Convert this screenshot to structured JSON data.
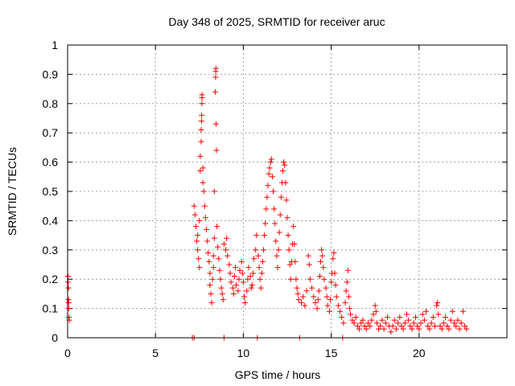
{
  "chart_data": {
    "type": "scatter",
    "title": "Day 348 of 2025, SRMTID for receiver aruc",
    "xlabel": "GPS time / hours",
    "ylabel": "SRMTID / TECUs",
    "xlim": [
      0,
      25
    ],
    "ylim": [
      0,
      1
    ],
    "x_ticks": [
      0,
      5,
      10,
      15,
      20
    ],
    "x_tick_labels": [
      "0",
      "5",
      "10",
      "15",
      "20"
    ],
    "y_ticks": [
      0,
      0.1,
      0.2,
      0.3,
      0.4,
      0.5,
      0.6,
      0.7,
      0.8,
      0.9,
      1
    ],
    "y_tick_labels": [
      "0",
      "0.1",
      "0.2",
      "0.3",
      "0.4",
      "0.5",
      "0.6",
      "0.7",
      "0.8",
      "0.9",
      "1"
    ],
    "grid": true,
    "marker": "+",
    "color": "#ff0000",
    "series": [
      {
        "name": "SRMTID",
        "points": [
          [
            0.02,
            0.21
          ],
          [
            0.03,
            0.19
          ],
          [
            0.05,
            0.17
          ],
          [
            0.05,
            0.13
          ],
          [
            0.06,
            0.12
          ],
          [
            0.07,
            0.1
          ],
          [
            0.08,
            0.07
          ],
          [
            0.1,
            0.06
          ],
          [
            7.1,
            0.0
          ],
          [
            7.2,
            0.0
          ],
          [
            7.2,
            0.45
          ],
          [
            7.25,
            0.42
          ],
          [
            7.3,
            0.38
          ],
          [
            7.35,
            0.33
          ],
          [
            7.4,
            0.35
          ],
          [
            7.4,
            0.3
          ],
          [
            7.45,
            0.27
          ],
          [
            7.5,
            0.24
          ],
          [
            7.5,
            0.4
          ],
          [
            7.55,
            0.57
          ],
          [
            7.55,
            0.62
          ],
          [
            7.6,
            0.67
          ],
          [
            7.6,
            0.71
          ],
          [
            7.62,
            0.74
          ],
          [
            7.63,
            0.76
          ],
          [
            7.64,
            0.8
          ],
          [
            7.65,
            0.82
          ],
          [
            7.65,
            0.83
          ],
          [
            7.7,
            0.58
          ],
          [
            7.7,
            0.53
          ],
          [
            7.75,
            0.5
          ],
          [
            7.8,
            0.45
          ],
          [
            7.85,
            0.41
          ],
          [
            7.9,
            0.37
          ],
          [
            7.95,
            0.33
          ],
          [
            8.0,
            0.29
          ],
          [
            8.05,
            0.26
          ],
          [
            8.1,
            0.22
          ],
          [
            8.1,
            0.18
          ],
          [
            8.15,
            0.15
          ],
          [
            8.2,
            0.12
          ],
          [
            8.25,
            0.2
          ],
          [
            8.3,
            0.24
          ],
          [
            8.3,
            0.28
          ],
          [
            8.35,
            0.34
          ],
          [
            8.35,
            0.5
          ],
          [
            8.4,
            0.84
          ],
          [
            8.42,
            0.89
          ],
          [
            8.43,
            0.91
          ],
          [
            8.44,
            0.92
          ],
          [
            8.45,
            0.73
          ],
          [
            8.47,
            0.64
          ],
          [
            8.5,
            0.38
          ],
          [
            8.55,
            0.31
          ],
          [
            8.6,
            0.27
          ],
          [
            8.65,
            0.23
          ],
          [
            8.7,
            0.2
          ],
          [
            8.75,
            0.17
          ],
          [
            8.8,
            0.15
          ],
          [
            8.85,
            0.13
          ],
          [
            8.9,
            0.0
          ],
          [
            8.9,
            0.32
          ],
          [
            9.0,
            0.3
          ],
          [
            9.05,
            0.34
          ],
          [
            9.1,
            0.28
          ],
          [
            9.2,
            0.25
          ],
          [
            9.25,
            0.22
          ],
          [
            9.3,
            0.19
          ],
          [
            9.4,
            0.17
          ],
          [
            9.45,
            0.15
          ],
          [
            9.5,
            0.21
          ],
          [
            9.55,
            0.24
          ],
          [
            9.6,
            0.18
          ],
          [
            9.7,
            0.16
          ],
          [
            9.75,
            0.2
          ],
          [
            9.8,
            0.23
          ],
          [
            9.9,
            0.26
          ],
          [
            9.95,
            0.22
          ],
          [
            10.0,
            0.19
          ],
          [
            10.05,
            0.14
          ],
          [
            10.1,
            0.12
          ],
          [
            10.2,
            0.16
          ],
          [
            10.25,
            0.2
          ],
          [
            10.3,
            0.24
          ],
          [
            10.4,
            0.21
          ],
          [
            10.45,
            0.17
          ],
          [
            10.5,
            0.18
          ],
          [
            10.55,
            0.22
          ],
          [
            10.6,
            0.27
          ],
          [
            10.7,
            0.3
          ],
          [
            10.75,
            0.35
          ],
          [
            10.8,
            0.0
          ],
          [
            10.85,
            0.28
          ],
          [
            10.9,
            0.24
          ],
          [
            10.95,
            0.2
          ],
          [
            11.0,
            0.17
          ],
          [
            11.05,
            0.22
          ],
          [
            11.1,
            0.26
          ],
          [
            11.15,
            0.3
          ],
          [
            11.2,
            0.35
          ],
          [
            11.25,
            0.39
          ],
          [
            11.3,
            0.44
          ],
          [
            11.35,
            0.48
          ],
          [
            11.4,
            0.52
          ],
          [
            11.45,
            0.56
          ],
          [
            11.5,
            0.58
          ],
          [
            11.55,
            0.6
          ],
          [
            11.6,
            0.61
          ],
          [
            11.65,
            0.55
          ],
          [
            11.7,
            0.5
          ],
          [
            11.75,
            0.44
          ],
          [
            11.8,
            0.39
          ],
          [
            11.85,
            0.33
          ],
          [
            11.9,
            0.28
          ],
          [
            11.95,
            0.24
          ],
          [
            12.0,
            0.3
          ],
          [
            12.05,
            0.36
          ],
          [
            12.1,
            0.42
          ],
          [
            12.15,
            0.48
          ],
          [
            12.2,
            0.53
          ],
          [
            12.25,
            0.57
          ],
          [
            12.3,
            0.6
          ],
          [
            12.35,
            0.59
          ],
          [
            12.4,
            0.53
          ],
          [
            12.45,
            0.47
          ],
          [
            12.5,
            0.41
          ],
          [
            12.55,
            0.35
          ],
          [
            12.6,
            0.3
          ],
          [
            12.65,
            0.25
          ],
          [
            12.7,
            0.2
          ],
          [
            12.75,
            0.26
          ],
          [
            12.8,
            0.32
          ],
          [
            12.85,
            0.38
          ],
          [
            12.9,
            0.32
          ],
          [
            12.95,
            0.26
          ],
          [
            13.0,
            0.2
          ],
          [
            13.05,
            0.17
          ],
          [
            13.1,
            0.15
          ],
          [
            13.15,
            0.13
          ],
          [
            13.2,
            0.0
          ],
          [
            13.3,
            0.12
          ],
          [
            13.4,
            0.14
          ],
          [
            13.5,
            0.11
          ],
          [
            13.6,
            0.16
          ],
          [
            13.7,
            0.28
          ],
          [
            13.75,
            0.25
          ],
          [
            13.8,
            0.2
          ],
          [
            13.9,
            0.17
          ],
          [
            14.0,
            0.14
          ],
          [
            14.1,
            0.12
          ],
          [
            14.2,
            0.1
          ],
          [
            14.25,
            0.13
          ],
          [
            14.3,
            0.16
          ],
          [
            14.35,
            0.21
          ],
          [
            14.4,
            0.26
          ],
          [
            14.45,
            0.3
          ],
          [
            14.5,
            0.28
          ],
          [
            14.55,
            0.24
          ],
          [
            14.6,
            0.2
          ],
          [
            14.7,
            0.17
          ],
          [
            14.75,
            0.14
          ],
          [
            14.8,
            0.11
          ],
          [
            14.9,
            0.09
          ],
          [
            14.95,
            0.13
          ],
          [
            15.0,
            0.19
          ],
          [
            15.05,
            0.22
          ],
          [
            15.1,
            0.27
          ],
          [
            15.15,
            0.29
          ],
          [
            15.2,
            0.22
          ],
          [
            15.25,
            0.18
          ],
          [
            15.3,
            0.14
          ],
          [
            15.4,
            0.11
          ],
          [
            15.5,
            0.09
          ],
          [
            15.6,
            0.07
          ],
          [
            15.65,
            0.0
          ],
          [
            15.7,
            0.05
          ],
          [
            15.8,
            0.12
          ],
          [
            15.85,
            0.16
          ],
          [
            15.9,
            0.19
          ],
          [
            15.95,
            0.23
          ],
          [
            16.0,
            0.14
          ],
          [
            16.05,
            0.1
          ],
          [
            16.1,
            0.08
          ],
          [
            16.2,
            0.06
          ],
          [
            16.3,
            0.05
          ],
          [
            16.4,
            0.07
          ],
          [
            16.5,
            0.04
          ],
          [
            16.6,
            0.03
          ],
          [
            16.7,
            0.05
          ],
          [
            16.8,
            0.06
          ],
          [
            16.9,
            0.04
          ],
          [
            17.0,
            0.03
          ],
          [
            17.1,
            0.05
          ],
          [
            17.2,
            0.04
          ],
          [
            17.3,
            0.06
          ],
          [
            17.4,
            0.08
          ],
          [
            17.5,
            0.11
          ],
          [
            17.55,
            0.09
          ],
          [
            17.6,
            0.05
          ],
          [
            17.7,
            0.03
          ],
          [
            17.8,
            0.04
          ],
          [
            17.9,
            0.06
          ],
          [
            18.0,
            0.03
          ],
          [
            18.1,
            0.05
          ],
          [
            18.2,
            0.07
          ],
          [
            18.3,
            0.04
          ],
          [
            18.4,
            0.02
          ],
          [
            18.5,
            0.04
          ],
          [
            18.6,
            0.06
          ],
          [
            18.7,
            0.03
          ],
          [
            18.8,
            0.05
          ],
          [
            18.9,
            0.07
          ],
          [
            19.0,
            0.04
          ],
          [
            19.1,
            0.03
          ],
          [
            19.2,
            0.05
          ],
          [
            19.3,
            0.08
          ],
          [
            19.4,
            0.06
          ],
          [
            19.5,
            0.04
          ],
          [
            19.6,
            0.03
          ],
          [
            19.7,
            0.05
          ],
          [
            19.8,
            0.07
          ],
          [
            19.9,
            0.04
          ],
          [
            20.0,
            0.03
          ],
          [
            20.1,
            0.05
          ],
          [
            20.2,
            0.08
          ],
          [
            20.3,
            0.06
          ],
          [
            20.4,
            0.09
          ],
          [
            20.5,
            0.04
          ],
          [
            20.6,
            0.03
          ],
          [
            20.7,
            0.05
          ],
          [
            20.8,
            0.07
          ],
          [
            20.9,
            0.04
          ],
          [
            21.0,
            0.11
          ],
          [
            21.05,
            0.12
          ],
          [
            21.1,
            0.08
          ],
          [
            21.2,
            0.04
          ],
          [
            21.3,
            0.03
          ],
          [
            21.4,
            0.05
          ],
          [
            21.5,
            0.07
          ],
          [
            21.6,
            0.04
          ],
          [
            21.7,
            0.03
          ],
          [
            21.8,
            0.06
          ],
          [
            21.9,
            0.09
          ],
          [
            22.0,
            0.05
          ],
          [
            22.1,
            0.04
          ],
          [
            22.2,
            0.06
          ],
          [
            22.3,
            0.03
          ],
          [
            22.4,
            0.05
          ],
          [
            22.5,
            0.09
          ],
          [
            22.6,
            0.04
          ],
          [
            22.7,
            0.03
          ]
        ]
      }
    ]
  }
}
